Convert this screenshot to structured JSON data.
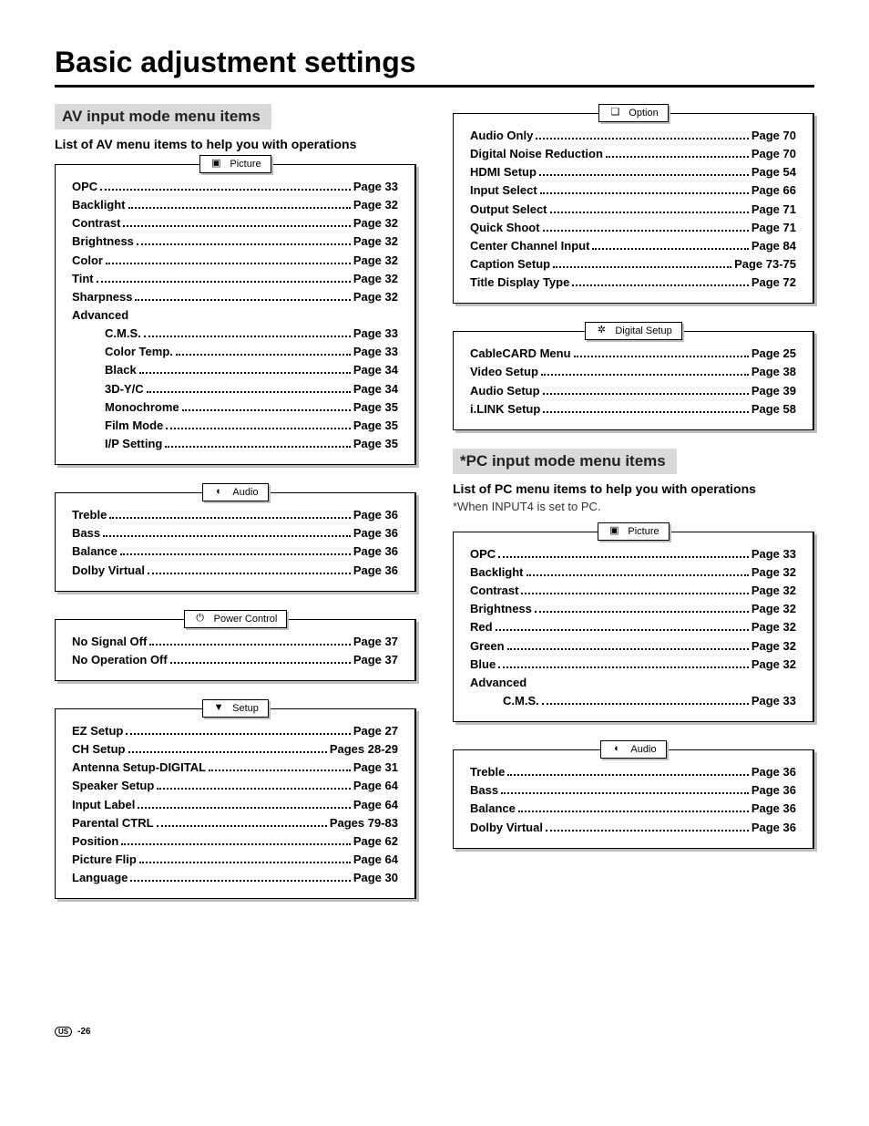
{
  "title": "Basic adjustment settings",
  "footer": {
    "region": "US",
    "page": "-26"
  },
  "left": {
    "header": "AV input mode menu items",
    "sub": "List of AV menu items to help you with operations",
    "groups": [
      {
        "tab": "Picture",
        "icon": "picture",
        "items": [
          {
            "label": "OPC",
            "page": "Page 33"
          },
          {
            "label": "Backlight",
            "page": "Page 32"
          },
          {
            "label": "Contrast",
            "page": "Page 32"
          },
          {
            "label": "Brightness",
            "page": "Page 32"
          },
          {
            "label": "Color",
            "page": "Page 32"
          },
          {
            "label": "Tint",
            "page": "Page 32"
          },
          {
            "label": "Sharpness",
            "page": "Page 32"
          },
          {
            "label": "Advanced",
            "heading": true
          },
          {
            "label": "C.M.S.",
            "page": "Page 33",
            "indent": true
          },
          {
            "label": "Color Temp.",
            "page": "Page 33",
            "indent": true
          },
          {
            "label": "Black",
            "page": "Page 34",
            "indent": true
          },
          {
            "label": "3D-Y/C",
            "page": "Page 34",
            "indent": true
          },
          {
            "label": "Monochrome",
            "page": "Page 35",
            "indent": true
          },
          {
            "label": "Film Mode",
            "page": "Page 35",
            "indent": true
          },
          {
            "label": "I/P Setting",
            "page": "Page 35",
            "indent": true
          }
        ]
      },
      {
        "tab": "Audio",
        "icon": "audio",
        "items": [
          {
            "label": "Treble",
            "page": "Page 36"
          },
          {
            "label": "Bass",
            "page": "Page 36"
          },
          {
            "label": "Balance",
            "page": "Page 36"
          },
          {
            "label": "Dolby Virtual",
            "page": "Page 36"
          }
        ]
      },
      {
        "tab": "Power Control",
        "icon": "power",
        "items": [
          {
            "label": "No Signal Off",
            "page": "Page 37"
          },
          {
            "label": "No Operation Off",
            "page": "Page 37"
          }
        ]
      },
      {
        "tab": "Setup",
        "icon": "setup",
        "items": [
          {
            "label": "EZ Setup",
            "page": "Page 27"
          },
          {
            "label": "CH Setup",
            "page": "Pages 28-29"
          },
          {
            "label": "Antenna Setup-DIGITAL",
            "page": "Page 31"
          },
          {
            "label": "Speaker Setup",
            "page": "Page 64"
          },
          {
            "label": "Input Label",
            "page": "Page 64"
          },
          {
            "label": "Parental CTRL",
            "page": "Pages 79-83"
          },
          {
            "label": "Position",
            "page": "Page 62"
          },
          {
            "label": "Picture Flip",
            "page": "Page 64"
          },
          {
            "label": "Language",
            "page": "Page 30"
          }
        ]
      }
    ]
  },
  "right": {
    "top_groups": [
      {
        "tab": "Option",
        "icon": "option",
        "items": [
          {
            "label": "Audio Only",
            "page": "Page 70"
          },
          {
            "label": "Digital Noise Reduction",
            "page": "Page 70"
          },
          {
            "label": "HDMI Setup",
            "page": "Page 54"
          },
          {
            "label": "Input Select",
            "page": "Page 66"
          },
          {
            "label": "Output Select",
            "page": "Page 71"
          },
          {
            "label": "Quick Shoot",
            "page": "Page 71"
          },
          {
            "label": "Center Channel Input",
            "page": "Page 84"
          },
          {
            "label": "Caption Setup",
            "page": "Page 73-75"
          },
          {
            "label": "Title Display Type",
            "page": "Page 72"
          }
        ]
      },
      {
        "tab": "Digital Setup",
        "icon": "digital",
        "items": [
          {
            "label": "CableCARD Menu",
            "page": "Page 25"
          },
          {
            "label": "Video Setup",
            "page": "Page 38"
          },
          {
            "label": "Audio Setup",
            "page": "Page 39"
          },
          {
            "label": "i.LINK Setup",
            "page": "Page 58"
          }
        ]
      }
    ],
    "header": "*PC input mode menu items",
    "sub": "List of PC menu items to help you with operations",
    "note": "*When INPUT4 is set to PC.",
    "groups": [
      {
        "tab": "Picture",
        "icon": "picture",
        "items": [
          {
            "label": "OPC",
            "page": "Page 33"
          },
          {
            "label": "Backlight",
            "page": "Page 32"
          },
          {
            "label": "Contrast",
            "page": "Page 32"
          },
          {
            "label": "Brightness",
            "page": "Page 32"
          },
          {
            "label": "Red",
            "page": "Page 32"
          },
          {
            "label": "Green",
            "page": "Page 32"
          },
          {
            "label": "Blue",
            "page": "Page 32"
          },
          {
            "label": "Advanced",
            "heading": true
          },
          {
            "label": "C.M.S.",
            "page": "Page 33",
            "indent": true
          }
        ]
      },
      {
        "tab": "Audio",
        "icon": "audio",
        "items": [
          {
            "label": "Treble",
            "page": "Page 36"
          },
          {
            "label": "Bass",
            "page": "Page 36"
          },
          {
            "label": "Balance",
            "page": "Page 36"
          },
          {
            "label": "Dolby Virtual",
            "page": "Page 36"
          }
        ]
      }
    ]
  },
  "icons": {
    "picture": "▣",
    "audio": "◐",
    "power": "⏻",
    "setup": "▼",
    "option": "❏",
    "digital": "✲"
  }
}
